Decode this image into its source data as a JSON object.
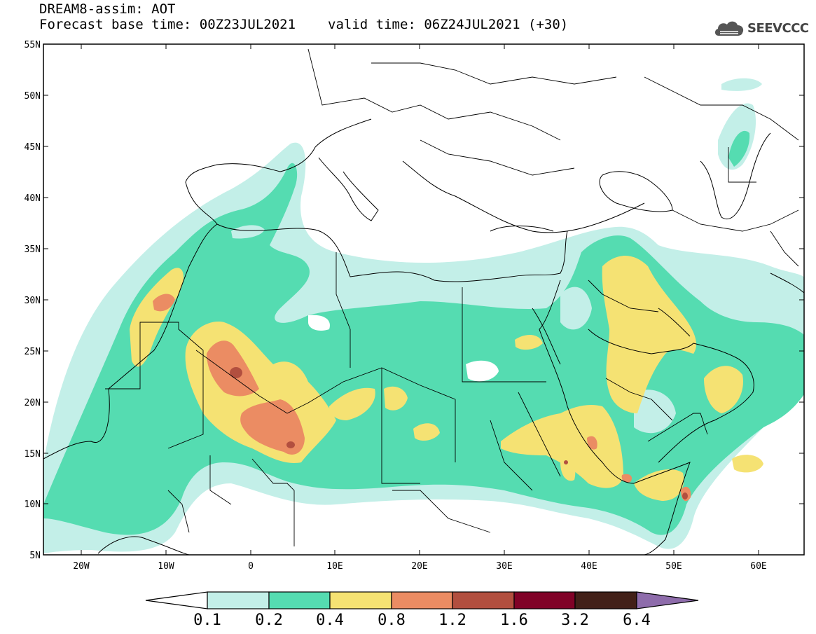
{
  "header": {
    "title": "DREAM8-assim: AOT",
    "base_time": "Forecast base time: 00Z23JUL2021",
    "valid_time": "valid time: 06Z24JUL2021 (+30)",
    "logo_text": "SEEVCCC"
  },
  "map": {
    "lat_labels": [
      "55N",
      "50N",
      "45N",
      "40N",
      "35N",
      "30N",
      "25N",
      "20N",
      "15N",
      "10N",
      "5N"
    ],
    "lon_labels": [
      "20W",
      "10W",
      "0",
      "10E",
      "20E",
      "30E",
      "40E",
      "50E",
      "60E"
    ],
    "lat_range": [
      5,
      55
    ],
    "lon_range": [
      -25,
      65
    ],
    "field": "AOT",
    "forecast_hour": "+30"
  },
  "colorbar": {
    "labels": [
      "0.1",
      "0.2",
      "0.4",
      "0.8",
      "1.2",
      "1.6",
      "3.2",
      "6.4"
    ],
    "colors": [
      "#ffffff",
      "#c3efe8",
      "#55dcb1",
      "#f5e273",
      "#eb8c63",
      "#b24f3f",
      "#800227",
      "#422018",
      "#8e6cab"
    ]
  },
  "palette": {
    "c1": "#c3efe8",
    "c2": "#55dcb1",
    "c3": "#f5e273",
    "c4": "#eb8c63",
    "c5": "#b24f3f"
  }
}
